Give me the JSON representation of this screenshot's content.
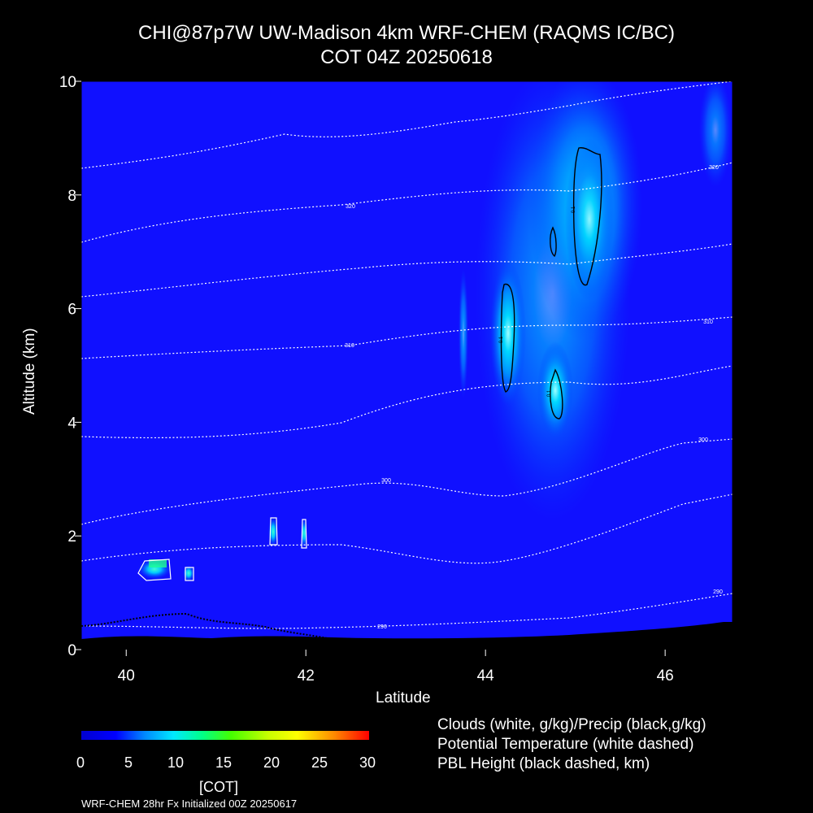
{
  "chart_data": {
    "type": "heatmap",
    "title": "CHI@87p7W UW-Madison 4km WRF-CHEM (RAQMS IC/BC)",
    "subtitle": "COT 04Z 20250618",
    "xlabel": "Latitude",
    "ylabel": "Altitude (km)",
    "xlim": [
      39.5,
      46.75
    ],
    "ylim": [
      0,
      10
    ],
    "x_ticks": [
      "40",
      "42",
      "44",
      "46"
    ],
    "y_ticks": [
      "0",
      "2",
      "4",
      "6",
      "8",
      "10"
    ],
    "colorbar": {
      "label": "[COT]",
      "ticks": [
        "0",
        "5",
        "10",
        "15",
        "20",
        "25",
        "30"
      ],
      "range": [
        0,
        30
      ]
    },
    "legend": [
      "Clouds (white, g/kg)/Precip (black,g/kg)",
      "Potential Temperature (white dashed)",
      "PBL Height (black dashed, km)"
    ],
    "theta_contour_labels": [
      "320",
      "320",
      "310",
      "310",
      "300",
      "300",
      "290",
      "290"
    ],
    "precip_contour_labels": [
      "0.1",
      "0.1",
      "0.1"
    ],
    "cot_features": [
      {
        "lat": 44.25,
        "alt": 5.5,
        "cot": 10
      },
      {
        "lat": 44.8,
        "alt": 4.3,
        "cot": 8
      },
      {
        "lat": 45.05,
        "alt": 7.8,
        "cot": 7
      },
      {
        "lat": 40.35,
        "alt": 1.4,
        "cot": 14
      },
      {
        "lat": 40.7,
        "alt": 1.3,
        "cot": 10
      },
      {
        "lat": 41.6,
        "alt": 2.1,
        "cot": 11
      },
      {
        "lat": 41.98,
        "alt": 2.1,
        "cot": 9
      }
    ]
  },
  "footer": "WRF-CHEM 28hr  Fx Initialized 00Z 20250617"
}
